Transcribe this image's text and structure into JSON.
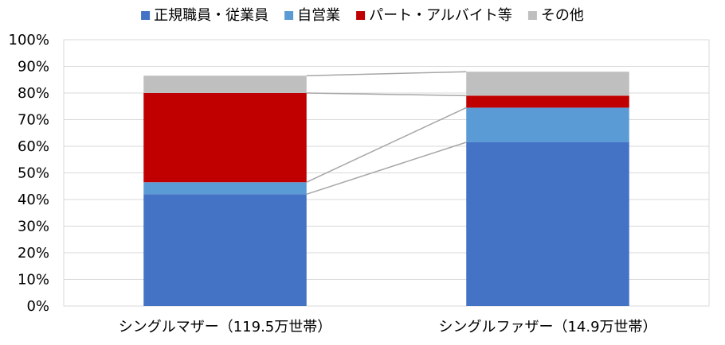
{
  "chart_data": {
    "type": "bar",
    "stacked": true,
    "categories": [
      "シングルマザー（119.5万世帯）",
      "シングルファザー（14.9万世帯）"
    ],
    "series": [
      {
        "name": "正規職員・従業員",
        "color": "#4472C4",
        "values": [
          42,
          61.5
        ]
      },
      {
        "name": "自営業",
        "color": "#5B9BD5",
        "values": [
          4.5,
          13
        ]
      },
      {
        "name": "パート・アルバイト等",
        "color": "#C00000",
        "values": [
          33.5,
          4.5
        ]
      },
      {
        "name": "その他",
        "color": "#BFBFBF",
        "values": [
          6.5,
          9
        ]
      }
    ],
    "ylim": [
      0,
      100
    ],
    "y_ticks": [
      "0%",
      "10%",
      "20%",
      "30%",
      "40%",
      "50%",
      "60%",
      "70%",
      "80%",
      "90%",
      "100%"
    ],
    "grid": true,
    "legend": "top",
    "connector_lines": true
  }
}
